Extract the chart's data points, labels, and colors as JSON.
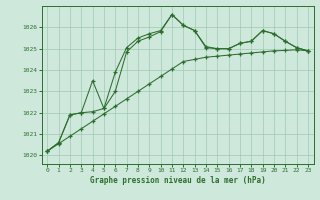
{
  "xlabel": "Graphe pression niveau de la mer (hPa)",
  "xlim": [
    -0.5,
    23.5
  ],
  "ylim": [
    1019.6,
    1027.0
  ],
  "yticks": [
    1020,
    1021,
    1022,
    1023,
    1024,
    1025,
    1026
  ],
  "xticks": [
    0,
    1,
    2,
    3,
    4,
    5,
    6,
    7,
    8,
    9,
    10,
    11,
    12,
    13,
    14,
    15,
    16,
    17,
    18,
    19,
    20,
    21,
    22,
    23
  ],
  "background_color": "#cee9db",
  "grid_color": "#9fc9b0",
  "line_color": "#2d6e2d",
  "y_straight": [
    1020.2,
    1020.55,
    1020.9,
    1021.25,
    1021.6,
    1021.95,
    1022.3,
    1022.65,
    1023.0,
    1023.35,
    1023.7,
    1024.05,
    1024.4,
    1024.5,
    1024.6,
    1024.65,
    1024.7,
    1024.75,
    1024.8,
    1024.85,
    1024.9,
    1024.92,
    1024.95,
    1024.9
  ],
  "y_line2": [
    1020.2,
    1020.6,
    1021.9,
    1022.0,
    1022.05,
    1022.2,
    1023.0,
    1024.85,
    1025.35,
    1025.55,
    1025.8,
    1026.6,
    1026.1,
    1025.85,
    1025.05,
    1025.0,
    1025.0,
    1025.25,
    1025.35,
    1025.85,
    1025.7,
    1025.35,
    1025.05,
    1024.9
  ],
  "y_line3": [
    1020.2,
    1020.6,
    1021.9,
    1022.0,
    1023.5,
    1022.2,
    1023.9,
    1025.05,
    1025.5,
    1025.7,
    1025.85,
    1026.6,
    1026.1,
    1025.85,
    1025.1,
    1025.0,
    1025.0,
    1025.25,
    1025.35,
    1025.85,
    1025.7,
    1025.35,
    1025.05,
    1024.9
  ]
}
